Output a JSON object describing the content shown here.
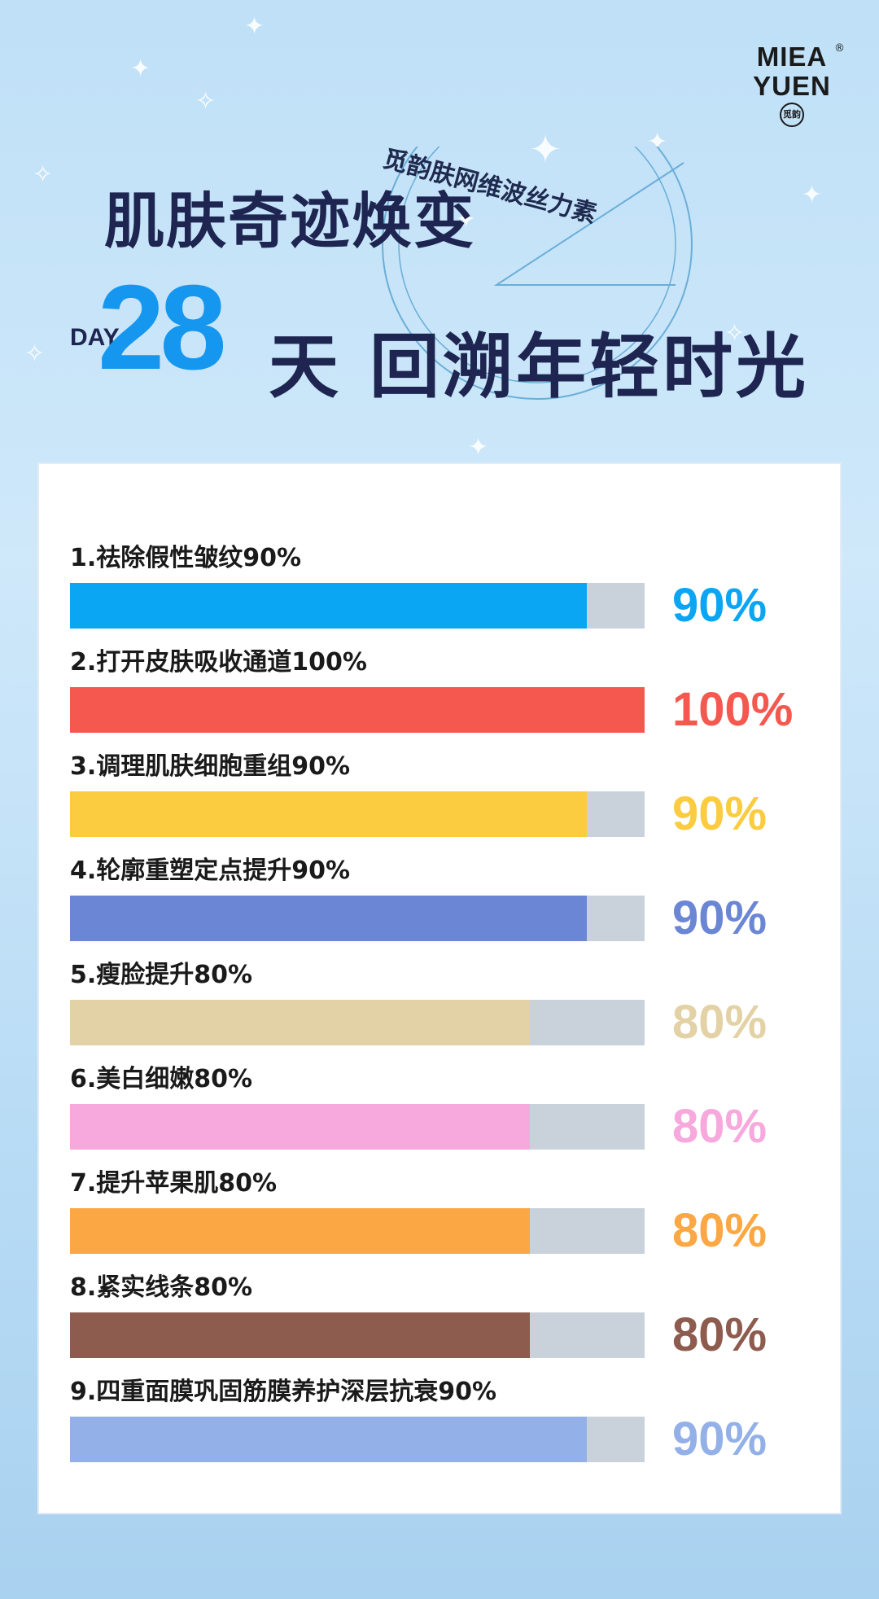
{
  "logo": {
    "line1": "MIEA",
    "line2": "YUEN",
    "seal": "觅韵",
    "reg": "®"
  },
  "header": {
    "subtitle": "觅韵肤网维波丝力素",
    "title_line1": "肌肤奇迹焕变",
    "day_label": "DAY",
    "day_number": "28",
    "title_line2": "天 回溯年轻时光"
  },
  "chart_data": {
    "type": "bar",
    "orientation": "horizontal",
    "xlim": [
      0,
      100
    ],
    "categories": [
      "1.祛除假性皱纹90%",
      "2.打开皮肤吸收通道100%",
      "3.调理肌肤细胞重组90%",
      "4.轮廓重塑定点提升90%",
      "5.瘦脸提升80%",
      "6.美白细嫩80%",
      "7.提升苹果肌80%",
      "8.紧实线条80%",
      "9.四重面膜巩固筋膜养护深层抗衰90%"
    ],
    "values": [
      90,
      100,
      90,
      90,
      80,
      80,
      80,
      80,
      90
    ],
    "value_labels": [
      "90%",
      "100%",
      "90%",
      "90%",
      "80%",
      "80%",
      "80%",
      "80%",
      "90%"
    ],
    "colors": [
      "#0aa5f3",
      "#f5584f",
      "#fbcc3f",
      "#6b86d4",
      "#e3d2a6",
      "#f7a8dc",
      "#fba743",
      "#8e5c4e",
      "#93b1e8"
    ],
    "track_color": "#c9d2da"
  }
}
